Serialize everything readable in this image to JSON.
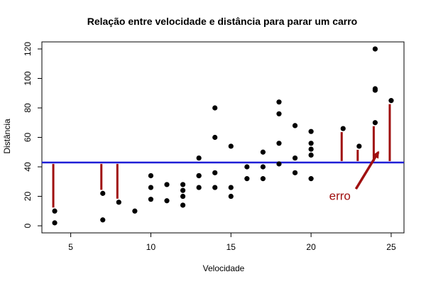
{
  "chart_data": {
    "type": "scatter",
    "title": "Relação entre velocidade e distância para parar um carro",
    "xlabel": "Velocidade",
    "ylabel": "Distância",
    "xlim": [
      3.2,
      25.8
    ],
    "ylim": [
      -4.8,
      124.8
    ],
    "xticks": [
      5,
      10,
      15,
      20,
      25
    ],
    "yticks": [
      0,
      20,
      40,
      60,
      80,
      100,
      120
    ],
    "grid": false,
    "points": [
      {
        "x": 4,
        "y": 2
      },
      {
        "x": 4,
        "y": 10
      },
      {
        "x": 7,
        "y": 4
      },
      {
        "x": 7,
        "y": 22
      },
      {
        "x": 8,
        "y": 16
      },
      {
        "x": 9,
        "y": 10
      },
      {
        "x": 10,
        "y": 18
      },
      {
        "x": 10,
        "y": 26
      },
      {
        "x": 10,
        "y": 34
      },
      {
        "x": 11,
        "y": 17
      },
      {
        "x": 11,
        "y": 28
      },
      {
        "x": 12,
        "y": 14
      },
      {
        "x": 12,
        "y": 20
      },
      {
        "x": 12,
        "y": 24
      },
      {
        "x": 12,
        "y": 28
      },
      {
        "x": 13,
        "y": 26
      },
      {
        "x": 13,
        "y": 34
      },
      {
        "x": 13,
        "y": 34
      },
      {
        "x": 13,
        "y": 46
      },
      {
        "x": 14,
        "y": 26
      },
      {
        "x": 14,
        "y": 36
      },
      {
        "x": 14,
        "y": 60
      },
      {
        "x": 14,
        "y": 80
      },
      {
        "x": 15,
        "y": 20
      },
      {
        "x": 15,
        "y": 26
      },
      {
        "x": 15,
        "y": 54
      },
      {
        "x": 16,
        "y": 32
      },
      {
        "x": 16,
        "y": 40
      },
      {
        "x": 17,
        "y": 32
      },
      {
        "x": 17,
        "y": 40
      },
      {
        "x": 17,
        "y": 50
      },
      {
        "x": 18,
        "y": 42
      },
      {
        "x": 18,
        "y": 56
      },
      {
        "x": 18,
        "y": 76
      },
      {
        "x": 18,
        "y": 84
      },
      {
        "x": 19,
        "y": 36
      },
      {
        "x": 19,
        "y": 46
      },
      {
        "x": 19,
        "y": 68
      },
      {
        "x": 20,
        "y": 32
      },
      {
        "x": 20,
        "y": 48
      },
      {
        "x": 20,
        "y": 52
      },
      {
        "x": 20,
        "y": 56
      },
      {
        "x": 20,
        "y": 64
      },
      {
        "x": 22,
        "y": 66
      },
      {
        "x": 23,
        "y": 54
      },
      {
        "x": 24,
        "y": 70
      },
      {
        "x": 24,
        "y": 92
      },
      {
        "x": 24,
        "y": 93
      },
      {
        "x": 24,
        "y": 120
      },
      {
        "x": 25,
        "y": 85
      }
    ],
    "mean_line": {
      "y": 42.98,
      "color": "#1f1fd6"
    },
    "residuals": {
      "color": "#a01010",
      "segments": [
        {
          "x": 4,
          "y": 10
        },
        {
          "x": 7,
          "y": 22
        },
        {
          "x": 8,
          "y": 16
        },
        {
          "x": 22,
          "y": 66
        },
        {
          "x": 23,
          "y": 54
        },
        {
          "x": 24,
          "y": 70
        },
        {
          "x": 25,
          "y": 85
        }
      ]
    },
    "annotation": {
      "text": "erro",
      "text_x": 21.8,
      "text_y": 20.5,
      "arrow_from": {
        "x": 22.8,
        "y": 25
      },
      "arrow_to": {
        "x": 24.2,
        "y": 50
      },
      "color": "#a01010"
    }
  }
}
